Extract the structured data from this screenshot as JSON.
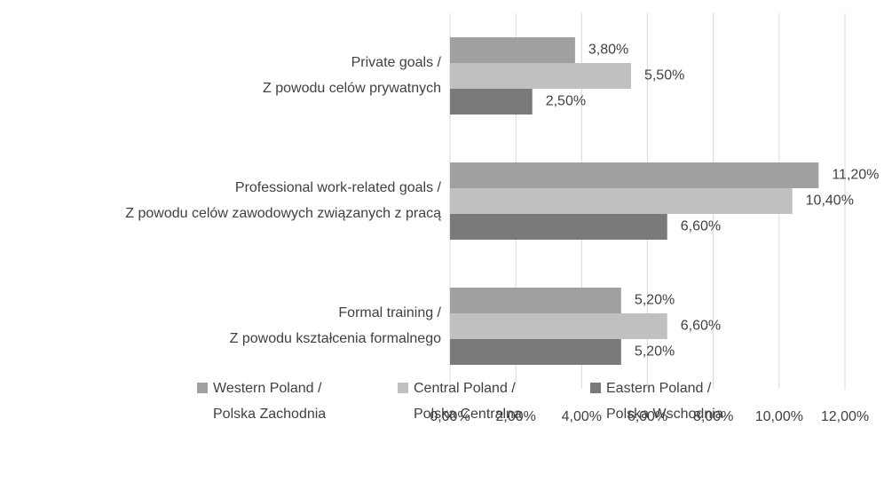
{
  "chart_data": {
    "type": "bar",
    "orientation": "horizontal",
    "categories": [
      [
        "Private goals /",
        "Z powodu celów prywatnych"
      ],
      [
        "Professional work-related goals /",
        "Z powodu celów zawodowych związanych z pracą"
      ],
      [
        "Formal training /",
        "Z powodu kształcenia formalnego"
      ]
    ],
    "series": [
      {
        "name": [
          "Western Poland /",
          "Polska Zachodnia"
        ],
        "color": "#a0a0a0",
        "values": [
          3.8,
          11.2,
          5.2
        ],
        "value_labels": [
          "3,80%",
          "11,20%",
          "5,20%"
        ]
      },
      {
        "name": [
          "Central Poland /",
          "Polska Centralna"
        ],
        "color": "#c0c0c0",
        "values": [
          5.5,
          10.4,
          6.6
        ],
        "value_labels": [
          "5,50%",
          "10,40%",
          "6,60%"
        ]
      },
      {
        "name": [
          "Eastern Poland /",
          "Polska Wschodnia"
        ],
        "color": "#7a7a7a",
        "values": [
          2.5,
          6.6,
          5.2
        ],
        "value_labels": [
          "2,50%",
          "6,60%",
          "5,20%"
        ]
      }
    ],
    "xlim": [
      0,
      12
    ],
    "xticks": [
      {
        "value": 0,
        "label": "0,00%"
      },
      {
        "value": 2,
        "label": "2,00%"
      },
      {
        "value": 4,
        "label": "4,00%"
      },
      {
        "value": 6,
        "label": "6,00%"
      },
      {
        "value": 8,
        "label": "8,00%"
      },
      {
        "value": 10,
        "label": "10,00%"
      },
      {
        "value": 12,
        "label": "12,00%"
      }
    ],
    "grid": true,
    "legend": "bottom"
  }
}
